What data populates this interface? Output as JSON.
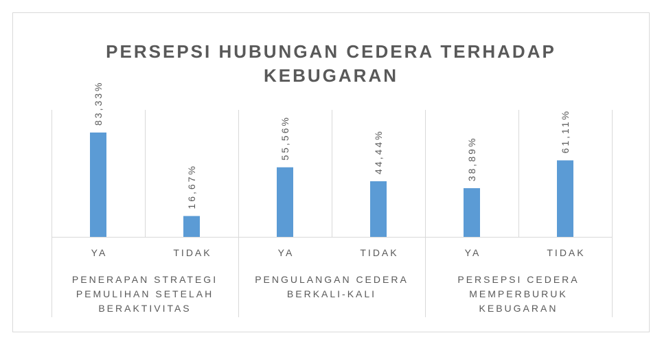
{
  "chart_data": {
    "type": "bar",
    "title": "PERSEPSI HUBUNGAN CEDERA TERHADAP KEBUGARAN",
    "categories": [
      "YA",
      "TIDAK",
      "YA",
      "TIDAK",
      "YA",
      "TIDAK"
    ],
    "groups": [
      "PENERAPAN STRATEGI PEMULIHAN SETELAH BERAKTIVITAS",
      "PENGULANGAN CEDERA BERKALI-KALI",
      "PERSEPSI CEDERA MEMPERBURUK KEBUGARAN"
    ],
    "values": [
      83.33,
      16.67,
      55.56,
      44.44,
      38.89,
      61.11
    ],
    "value_labels": [
      "83,33%",
      "16,67%",
      "55,56%",
      "44,44%",
      "38,89%",
      "61,11%"
    ],
    "color": "#5b9bd5"
  }
}
